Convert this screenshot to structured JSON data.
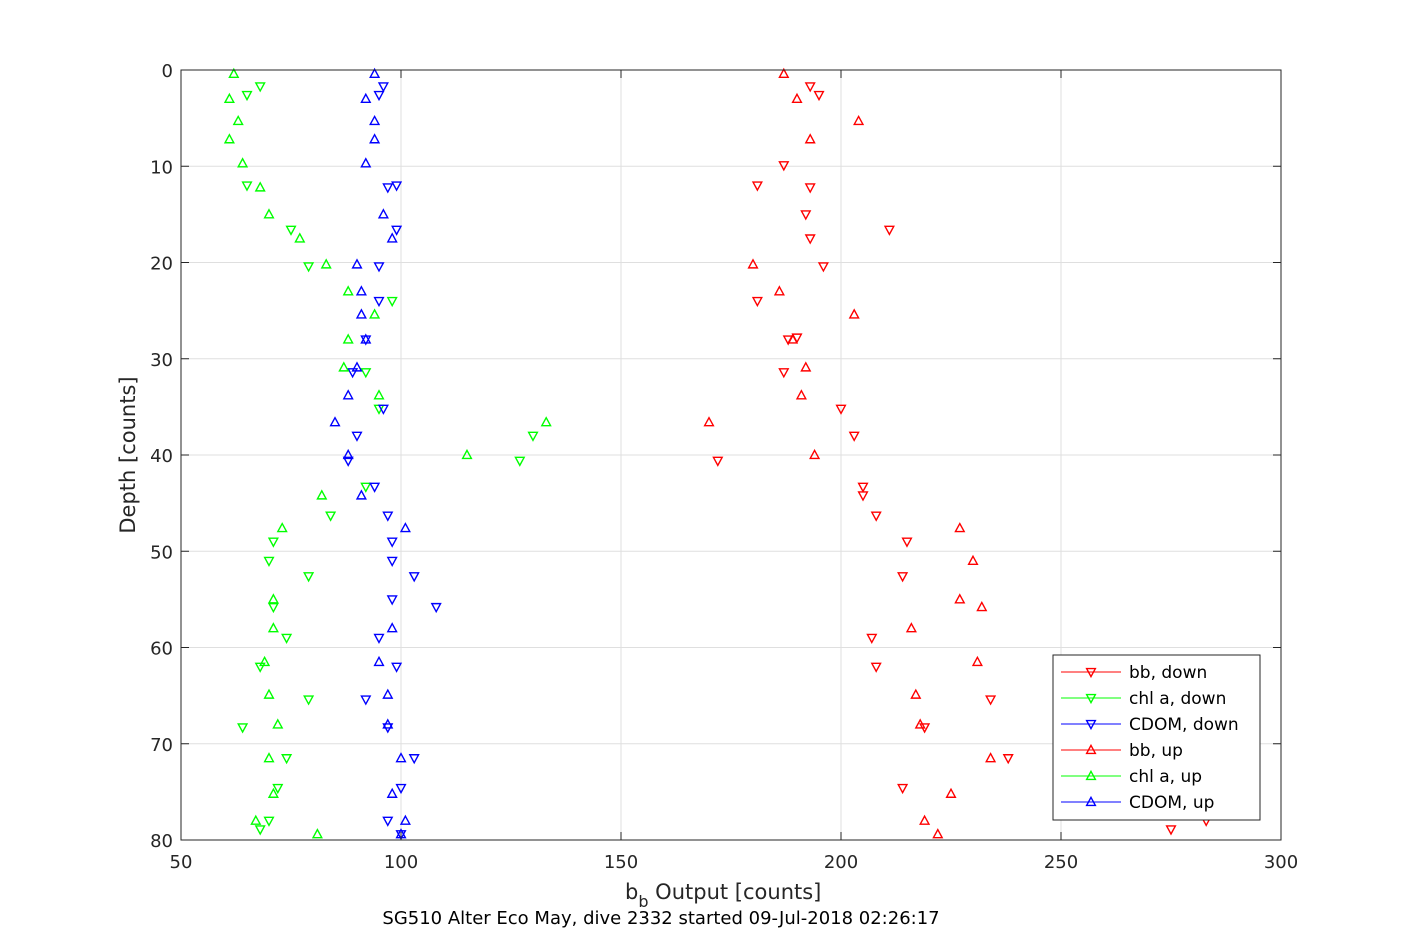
{
  "chart_data": {
    "type": "scatter",
    "xlabel": "b",
    "xlabel_sub": "b",
    "xlabel_rest": " Output [counts]",
    "ylabel": "Depth [counts]",
    "caption": "SG510 Alter Eco May, dive 2332 started 09-Jul-2018 02:26:17",
    "xlim": [
      50,
      300
    ],
    "ylim": [
      0,
      80
    ],
    "y_reversed": true,
    "grid": true,
    "legend_position": "bottom-right",
    "xticks": [
      50,
      100,
      150,
      200,
      250,
      300
    ],
    "yticks": [
      0,
      10,
      20,
      30,
      40,
      50,
      60,
      70,
      80
    ],
    "series": [
      {
        "name": "bb, down",
        "color": "#ff0000",
        "marker": "triangle-down",
        "points": [
          [
            193,
            1.7
          ],
          [
            195,
            2.6
          ],
          [
            187,
            9.9
          ],
          [
            181,
            12.0
          ],
          [
            193,
            12.2
          ],
          [
            192,
            15.0
          ],
          [
            211,
            16.6
          ],
          [
            193,
            17.5
          ],
          [
            196,
            20.4
          ],
          [
            181,
            24.0
          ],
          [
            190,
            27.8
          ],
          [
            188,
            28.0
          ],
          [
            187,
            31.4
          ],
          [
            200,
            35.2
          ],
          [
            203,
            38.0
          ],
          [
            172,
            40.6
          ],
          [
            205,
            43.3
          ],
          [
            205,
            44.2
          ],
          [
            208,
            46.3
          ],
          [
            215,
            49.0
          ],
          [
            214,
            52.6
          ],
          [
            207,
            59.0
          ],
          [
            208,
            62.0
          ],
          [
            234,
            65.4
          ],
          [
            219,
            68.3
          ],
          [
            238,
            71.5
          ],
          [
            214,
            74.6
          ],
          [
            275,
            78.9
          ],
          [
            283,
            78.0
          ]
        ]
      },
      {
        "name": "chl a, down",
        "color": "#00ff00",
        "marker": "triangle-down",
        "points": [
          [
            68,
            1.7
          ],
          [
            65,
            2.6
          ],
          [
            65,
            12.0
          ],
          [
            75,
            16.6
          ],
          [
            79,
            20.4
          ],
          [
            98,
            24.0
          ],
          [
            92,
            31.4
          ],
          [
            95,
            35.2
          ],
          [
            130,
            38.0
          ],
          [
            127,
            40.6
          ],
          [
            92,
            43.3
          ],
          [
            84,
            46.3
          ],
          [
            71,
            49.0
          ],
          [
            70,
            51.0
          ],
          [
            79,
            52.6
          ],
          [
            71,
            55.8
          ],
          [
            74,
            59.0
          ],
          [
            68,
            62.0
          ],
          [
            79,
            65.4
          ],
          [
            64,
            68.3
          ],
          [
            74,
            71.5
          ],
          [
            72,
            74.6
          ],
          [
            70,
            78.0
          ],
          [
            68,
            78.9
          ]
        ]
      },
      {
        "name": "CDOM, down",
        "color": "#0000ff",
        "marker": "triangle-down",
        "points": [
          [
            96,
            1.7
          ],
          [
            95,
            2.6
          ],
          [
            99,
            12.0
          ],
          [
            97,
            12.2
          ],
          [
            99,
            16.6
          ],
          [
            95,
            20.4
          ],
          [
            95,
            24.0
          ],
          [
            92,
            28.0
          ],
          [
            89,
            31.4
          ],
          [
            96,
            35.2
          ],
          [
            90,
            38.0
          ],
          [
            88,
            40.6
          ],
          [
            94,
            43.3
          ],
          [
            97,
            46.3
          ],
          [
            98,
            49.0
          ],
          [
            98,
            51.0
          ],
          [
            103,
            52.6
          ],
          [
            98,
            55.0
          ],
          [
            108,
            55.8
          ],
          [
            95,
            59.0
          ],
          [
            99,
            62.0
          ],
          [
            92,
            65.4
          ],
          [
            97,
            68.3
          ],
          [
            103,
            71.5
          ],
          [
            100,
            74.6
          ],
          [
            97,
            78.0
          ],
          [
            100,
            79.4
          ]
        ]
      },
      {
        "name": "bb, up",
        "color": "#ff0000",
        "marker": "triangle-up",
        "points": [
          [
            187,
            0.4
          ],
          [
            190,
            3.0
          ],
          [
            204,
            5.3
          ],
          [
            193,
            7.2
          ],
          [
            180,
            20.2
          ],
          [
            186,
            23.0
          ],
          [
            203,
            25.4
          ],
          [
            189,
            28.0
          ],
          [
            192,
            30.9
          ],
          [
            191,
            33.8
          ],
          [
            170,
            36.6
          ],
          [
            194,
            40.0
          ],
          [
            227,
            47.6
          ],
          [
            230,
            51.0
          ],
          [
            227,
            55.0
          ],
          [
            232,
            55.8
          ],
          [
            216,
            58.0
          ],
          [
            231,
            61.5
          ],
          [
            217,
            64.9
          ],
          [
            218,
            68.0
          ],
          [
            234,
            71.5
          ],
          [
            225,
            75.2
          ],
          [
            219,
            78.0
          ],
          [
            222,
            79.4
          ]
        ]
      },
      {
        "name": "chl a, up",
        "color": "#00ff00",
        "marker": "triangle-up",
        "points": [
          [
            62,
            0.4
          ],
          [
            61,
            3.0
          ],
          [
            63,
            5.3
          ],
          [
            61,
            7.2
          ],
          [
            64,
            9.7
          ],
          [
            68,
            12.2
          ],
          [
            70,
            15.0
          ],
          [
            77,
            17.5
          ],
          [
            83,
            20.2
          ],
          [
            88,
            23.0
          ],
          [
            94,
            25.4
          ],
          [
            88,
            28.0
          ],
          [
            87,
            30.9
          ],
          [
            95,
            33.8
          ],
          [
            133,
            36.6
          ],
          [
            115,
            40.0
          ],
          [
            82,
            44.2
          ],
          [
            73,
            47.6
          ],
          [
            71,
            55.0
          ],
          [
            71,
            58.0
          ],
          [
            69,
            61.5
          ],
          [
            70,
            64.9
          ],
          [
            72,
            68.0
          ],
          [
            70,
            71.5
          ],
          [
            71,
            75.2
          ],
          [
            67,
            78.0
          ],
          [
            81,
            79.4
          ]
        ]
      },
      {
        "name": "CDOM, up",
        "color": "#0000ff",
        "marker": "triangle-up",
        "points": [
          [
            94,
            0.4
          ],
          [
            92,
            3.0
          ],
          [
            94,
            5.3
          ],
          [
            94,
            7.2
          ],
          [
            92,
            9.7
          ],
          [
            96,
            15.0
          ],
          [
            98,
            17.5
          ],
          [
            90,
            20.2
          ],
          [
            91,
            23.0
          ],
          [
            91,
            25.4
          ],
          [
            92,
            28.0
          ],
          [
            90,
            30.9
          ],
          [
            88,
            33.8
          ],
          [
            85,
            36.6
          ],
          [
            88,
            40.0
          ],
          [
            91,
            44.2
          ],
          [
            101,
            47.6
          ],
          [
            98,
            58.0
          ],
          [
            95,
            61.5
          ],
          [
            97,
            64.9
          ],
          [
            97,
            68.0
          ],
          [
            100,
            71.5
          ],
          [
            98,
            75.2
          ],
          [
            101,
            78.0
          ],
          [
            100,
            79.4
          ]
        ]
      }
    ]
  }
}
